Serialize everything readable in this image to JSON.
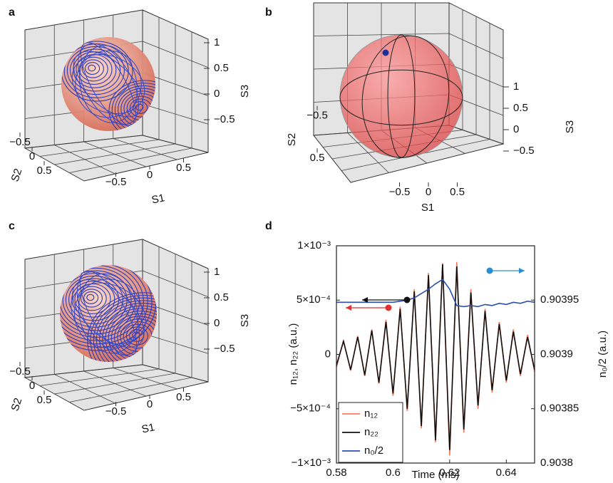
{
  "chart_data": [
    {
      "type": "sphere3d",
      "panel_label": "a",
      "xlabel": "S1",
      "ylabel": "S2",
      "zlabel": "S3",
      "xlim": [
        -1,
        1
      ],
      "ylim": [
        -1,
        1
      ],
      "zlim": [
        -1,
        1
      ],
      "xticks": [
        {
          "value": -0.5,
          "label": "−0.5"
        },
        0,
        0.5
      ],
      "yticks": [
        0.5,
        0,
        {
          "value": -0.5,
          "label": "−0.5"
        }
      ],
      "zticks": [
        1,
        0.5,
        0,
        {
          "value": -0.5,
          "label": "−0.5"
        }
      ]
    },
    {
      "type": "sphere3d",
      "panel_label": "b",
      "xlabel": "S1",
      "ylabel": "S2",
      "zlabel": "S3",
      "xlim": [
        -1,
        1
      ],
      "ylim": [
        -1,
        1
      ],
      "zlim": [
        -1,
        1
      ],
      "xticks": [
        {
          "value": -0.5,
          "label": "−0.5"
        },
        0,
        0.5
      ],
      "yticks": [
        0.5,
        {
          "value": -0.5,
          "label": "−0.5"
        }
      ],
      "zticks": [
        1,
        0.5,
        0,
        {
          "value": -0.5,
          "label": "−0.5"
        }
      ]
    },
    {
      "type": "sphere3d",
      "panel_label": "c",
      "xlabel": "S1",
      "ylabel": "S2",
      "zlabel": "S3",
      "xlim": [
        -1,
        1
      ],
      "ylim": [
        -1,
        1
      ],
      "zlim": [
        -1,
        1
      ],
      "xticks": [
        {
          "value": -0.5,
          "label": "−0.5"
        },
        0,
        0.5
      ],
      "yticks": [
        0.5,
        0,
        {
          "value": -0.5,
          "label": "−0.5"
        }
      ],
      "zticks": [
        1,
        0.5,
        0,
        {
          "value": -0.5,
          "label": "−0.5"
        }
      ]
    },
    {
      "type": "line",
      "panel_label": "d",
      "xlabel": "Time (ms)",
      "ylabel": "n₁₂, n₂₂ (a.u.)",
      "y2label": "n₀/2 (a.u.)",
      "x": [
        0.58,
        0.5825,
        0.585,
        0.5875,
        0.59,
        0.5925,
        0.595,
        0.5975,
        0.6,
        0.6025,
        0.605,
        0.6075,
        0.61,
        0.6125,
        0.615,
        0.6175,
        0.62,
        0.6225,
        0.625,
        0.6275,
        0.63,
        0.6325,
        0.635,
        0.6375,
        0.64,
        0.6425,
        0.645,
        0.6475,
        0.65
      ],
      "series": [
        {
          "name": "n₁₂",
          "color": "#f47c5c",
          "values": [
            -0.00012,
            0.00013,
            -0.00015,
            0.00017,
            -0.0002,
            0.00023,
            -0.00027,
            0.00032,
            -0.00038,
            0.00044,
            -0.00052,
            0.0006,
            -0.00068,
            0.00075,
            -0.00081,
            0.00084,
            -0.00093,
            0.00085,
            -0.00072,
            0.0006,
            -0.0005,
            0.00042,
            -0.00035,
            0.0003,
            -0.00026,
            0.00023,
            -0.0002,
            0.00018,
            -0.00016
          ]
        },
        {
          "name": "n₂₂",
          "color": "#111111",
          "values": [
            -0.0001,
            0.00012,
            -0.00014,
            0.00016,
            -0.00019,
            0.00022,
            -0.00026,
            0.0003,
            -0.00036,
            0.00042,
            -0.0005,
            0.00058,
            -0.00066,
            0.00073,
            -0.00079,
            0.00083,
            -0.00088,
            0.00081,
            -0.00069,
            0.00057,
            -0.00047,
            0.0004,
            -0.00033,
            0.00028,
            -0.00024,
            0.00021,
            -0.00018,
            0.00016,
            -0.00014
          ]
        },
        {
          "name": "n₀/2",
          "color": "#2a4fb0",
          "axis": "y2",
          "values": [
            0.903948,
            0.903948,
            0.903948,
            0.903948,
            0.903948,
            0.903948,
            0.903948,
            0.903948,
            0.903948,
            0.903949,
            0.90395,
            0.903952,
            0.903956,
            0.90396,
            0.903965,
            0.903969,
            0.90396,
            0.903945,
            0.903944,
            0.903945,
            0.903944,
            0.903946,
            0.903945,
            0.903947,
            0.903946,
            0.903948,
            0.903947,
            0.903949,
            0.903948
          ]
        }
      ],
      "xlim": [
        0.58,
        0.65
      ],
      "xticks": [
        0.58,
        0.6,
        0.62,
        0.64
      ],
      "ylim": [
        -0.001,
        0.001
      ],
      "yticks": [
        {
          "value": 0.001,
          "label": "1×10⁻³"
        },
        {
          "value": 0.0005,
          "label": "5×10⁻⁴"
        },
        0,
        {
          "value": -0.0005,
          "label": "−5×10⁻⁴"
        },
        {
          "value": -0.001,
          "label": "−1×10⁻³"
        }
      ],
      "y2lim": [
        0.9038,
        0.904
      ],
      "y2ticks": [
        0.9038,
        0.90385,
        0.9039,
        0.90395
      ],
      "legend": "lower left"
    }
  ]
}
